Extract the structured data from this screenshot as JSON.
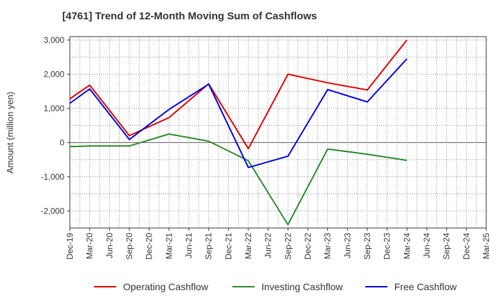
{
  "chart_data": {
    "type": "line",
    "title": "[4761]  Trend of 12-Month Moving Sum of Cashflows",
    "xlabel": "",
    "ylabel": "Amount (million yen)",
    "categories": [
      "Dec-19",
      "Mar-20",
      "Jun-20",
      "Sep-20",
      "Dec-20",
      "Mar-21",
      "Jun-21",
      "Sep-21",
      "Dec-21",
      "Mar-22",
      "Jun-22",
      "Sep-22",
      "Dec-22",
      "Mar-23",
      "Jun-23",
      "Sep-23",
      "Dec-23",
      "Mar-24",
      "Jun-24",
      "Sep-24",
      "Dec-24",
      "Mar-25"
    ],
    "ylim": [
      -2500,
      3100
    ],
    "yticks": [
      -2000,
      -1000,
      0,
      1000,
      2000,
      3000
    ],
    "ytick_labels": [
      "-2,000",
      "-1,000",
      "0",
      "1,000",
      "2,000",
      "3,000"
    ],
    "grid": true,
    "legend_position": "bottom",
    "series": [
      {
        "name": "Operating Cashflow",
        "color": "#e00000",
        "points": [
          [
            "Dec-19",
            1280
          ],
          [
            "Mar-20",
            1680
          ],
          [
            "Sep-20",
            200
          ],
          [
            "Mar-21",
            730
          ],
          [
            "Sep-21",
            1720
          ],
          [
            "Mar-22",
            -180
          ],
          [
            "Sep-22",
            2000
          ],
          [
            "Mar-23",
            1750
          ],
          [
            "Sep-23",
            1540
          ],
          [
            "Mar-24",
            3000
          ]
        ]
      },
      {
        "name": "Investing Cashflow",
        "color": "#2a8a2a",
        "points": [
          [
            "Dec-19",
            -120
          ],
          [
            "Mar-20",
            -100
          ],
          [
            "Sep-20",
            -100
          ],
          [
            "Mar-21",
            250
          ],
          [
            "Sep-21",
            40
          ],
          [
            "Mar-22",
            -530
          ],
          [
            "Sep-22",
            -2400
          ],
          [
            "Mar-23",
            -190
          ],
          [
            "Sep-23",
            -340
          ],
          [
            "Mar-24",
            -520
          ]
        ]
      },
      {
        "name": "Free Cashflow",
        "color": "#0000e0",
        "points": [
          [
            "Dec-19",
            1150
          ],
          [
            "Mar-20",
            1570
          ],
          [
            "Sep-20",
            90
          ],
          [
            "Mar-21",
            970
          ],
          [
            "Sep-21",
            1710
          ],
          [
            "Mar-22",
            -730
          ],
          [
            "Sep-22",
            -400
          ],
          [
            "Mar-23",
            1550
          ],
          [
            "Sep-23",
            1190
          ],
          [
            "Mar-24",
            2450
          ]
        ]
      }
    ]
  }
}
